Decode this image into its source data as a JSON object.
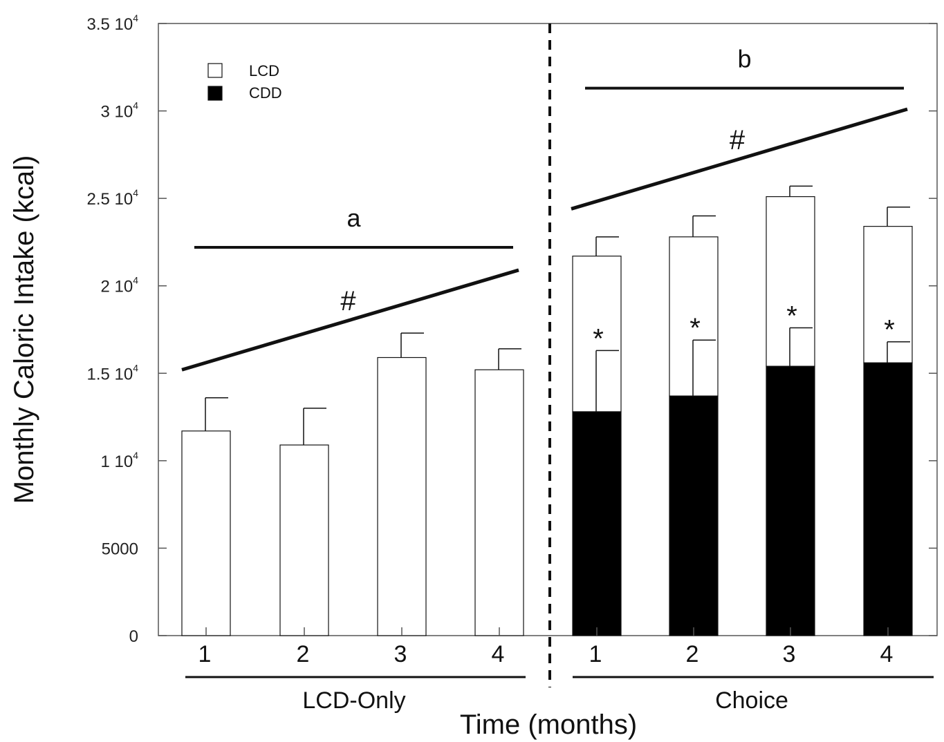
{
  "chart_data": {
    "type": "bar",
    "xlabel": "Time (months)",
    "ylabel": "Monthly Caloric Intake (kcal)",
    "ylim": [
      0,
      35000
    ],
    "yticks": [
      {
        "value": 0,
        "label": "0",
        "exp": ""
      },
      {
        "value": 5000,
        "label": "5000",
        "exp": ""
      },
      {
        "value": 10000,
        "label": "1 10",
        "exp": "4"
      },
      {
        "value": 15000,
        "label": "1.5 10",
        "exp": "4"
      },
      {
        "value": 20000,
        "label": "2 10",
        "exp": "4"
      },
      {
        "value": 25000,
        "label": "2.5 10",
        "exp": "4"
      },
      {
        "value": 30000,
        "label": "3 10",
        "exp": "4"
      },
      {
        "value": 35000,
        "label": "3.5 10",
        "exp": "4"
      }
    ],
    "legend": {
      "placement": "top-left",
      "entries": [
        {
          "name": "LCD",
          "color": "#ffffff"
        },
        {
          "name": "CDD",
          "color": "#000000"
        }
      ]
    },
    "groups": [
      {
        "name": "LCD-Only",
        "categories": [
          "1",
          "2",
          "3",
          "4"
        ],
        "lcd": [
          11700,
          10900,
          15900,
          15200
        ],
        "cdd": [
          0,
          0,
          0,
          0
        ],
        "total_error": [
          1900,
          2100,
          1400,
          1200
        ],
        "cdd_error": [
          0,
          0,
          0,
          0
        ],
        "stars": [
          false,
          false,
          false,
          false
        ],
        "letter": "a",
        "hash": "#",
        "trend": [
          15200,
          20900
        ]
      },
      {
        "name": "Choice",
        "categories": [
          "1",
          "2",
          "3",
          "4"
        ],
        "lcd": [
          8900,
          9100,
          9700,
          7800
        ],
        "cdd": [
          12800,
          13700,
          15400,
          15600
        ],
        "total_error": [
          1100,
          1200,
          600,
          1100
        ],
        "cdd_error": [
          3500,
          3200,
          2200,
          1200
        ],
        "stars": [
          true,
          true,
          true,
          true
        ],
        "star_symbol": "*",
        "letter": "b",
        "hash": "#",
        "trend": [
          24400,
          30100
        ]
      }
    ],
    "colors": {
      "lcd": "#ffffff",
      "cdd": "#000000",
      "stroke": "#111111"
    },
    "divider": "dashed"
  }
}
